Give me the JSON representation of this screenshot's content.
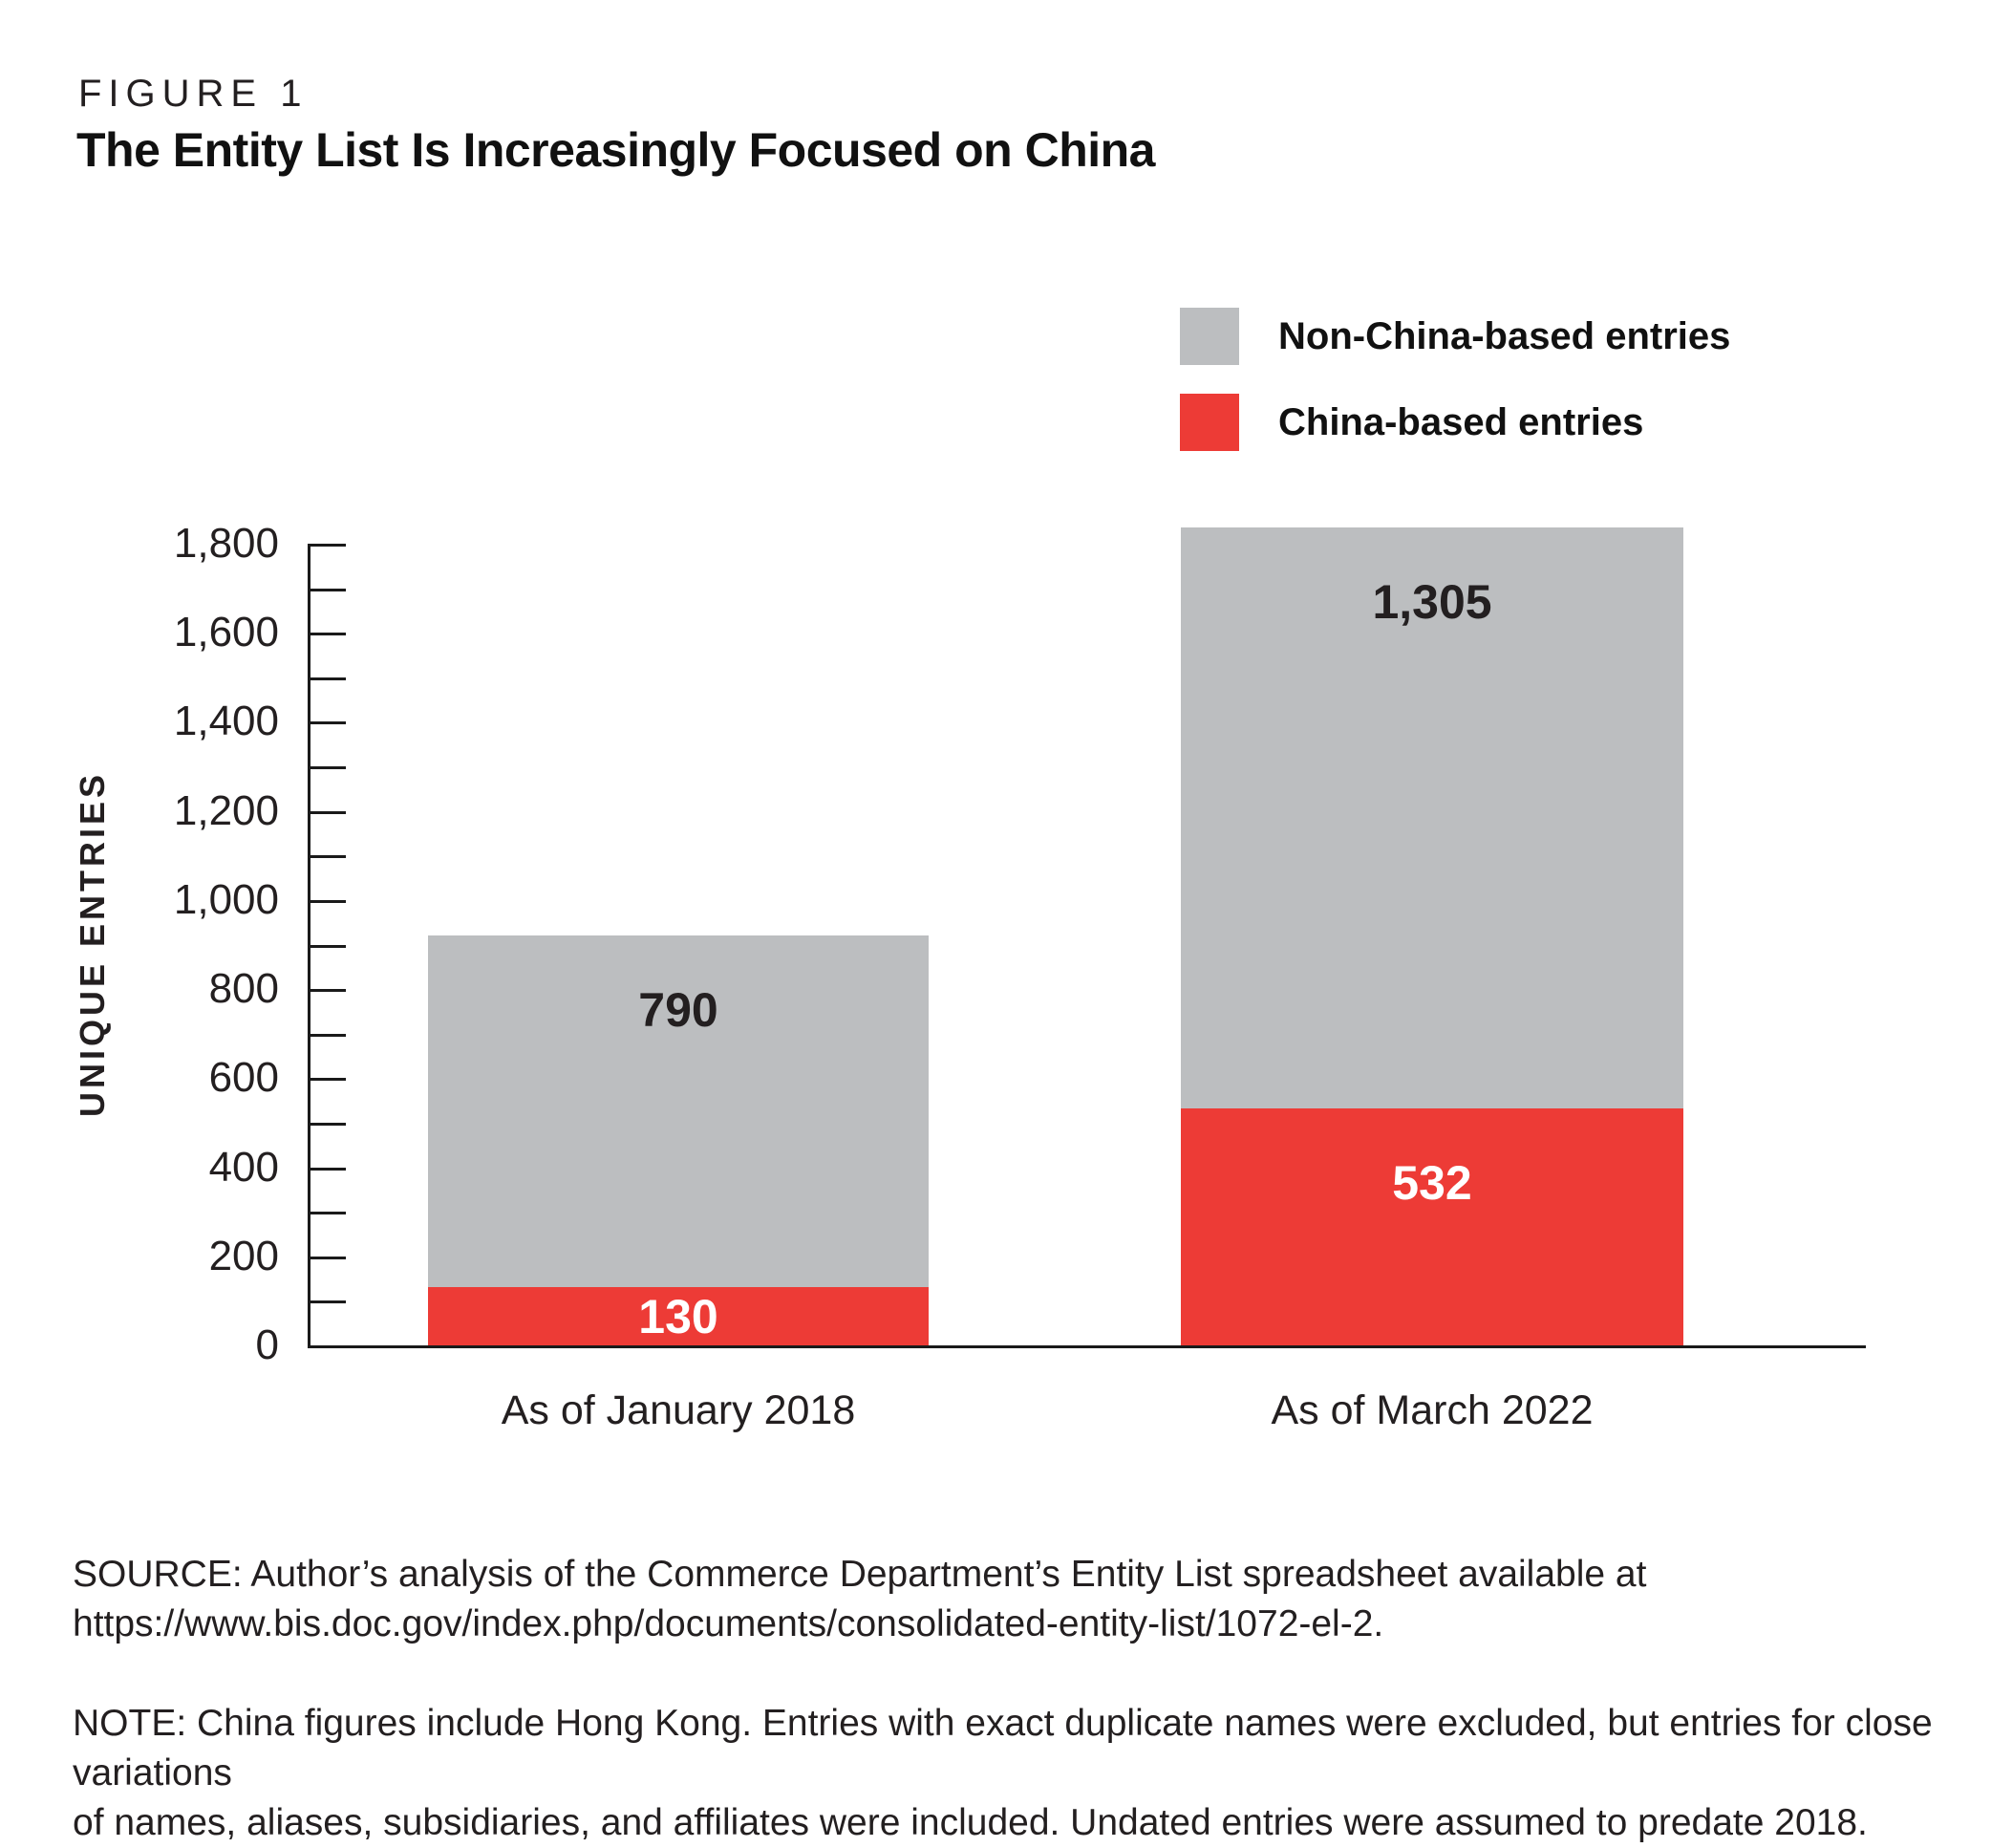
{
  "header": {
    "figure_label": "FIGURE 1",
    "title": "The Entity List Is Increasingly Focused on China"
  },
  "chart_data": {
    "type": "bar",
    "stacked": true,
    "title": "The Entity List Is Increasingly Focused on China",
    "ylabel": "UNIQUE ENTRIES",
    "xlabel": "",
    "categories": [
      "As of January 2018",
      "As of March 2022"
    ],
    "series": [
      {
        "name": "China-based entries",
        "color": "#ed3b36",
        "label_color": "#ffffff",
        "values": [
          130,
          532
        ]
      },
      {
        "name": "Non-China-based entries",
        "color": "#bcbec0",
        "label_color": "#231f20",
        "values": [
          790,
          1305
        ]
      }
    ],
    "ylim": [
      0,
      1800
    ],
    "ytick_step": 200,
    "minor_tick_step": 100,
    "grid": false,
    "legend_position": "top-right"
  },
  "footer": {
    "source": "SOURCE: Author’s analysis of the Commerce Department’s Entity List spreadsheet available at\nhttps://www.bis.doc.gov/index.php/documents/consolidated-entity-list/1072-el-2.",
    "note": "NOTE: China figures include Hong Kong. Entries with exact duplicate names were excluded, but entries for close variations\nof names, aliases, subsidiaries, and affiliates were included. Undated entries were assumed to predate 2018."
  }
}
